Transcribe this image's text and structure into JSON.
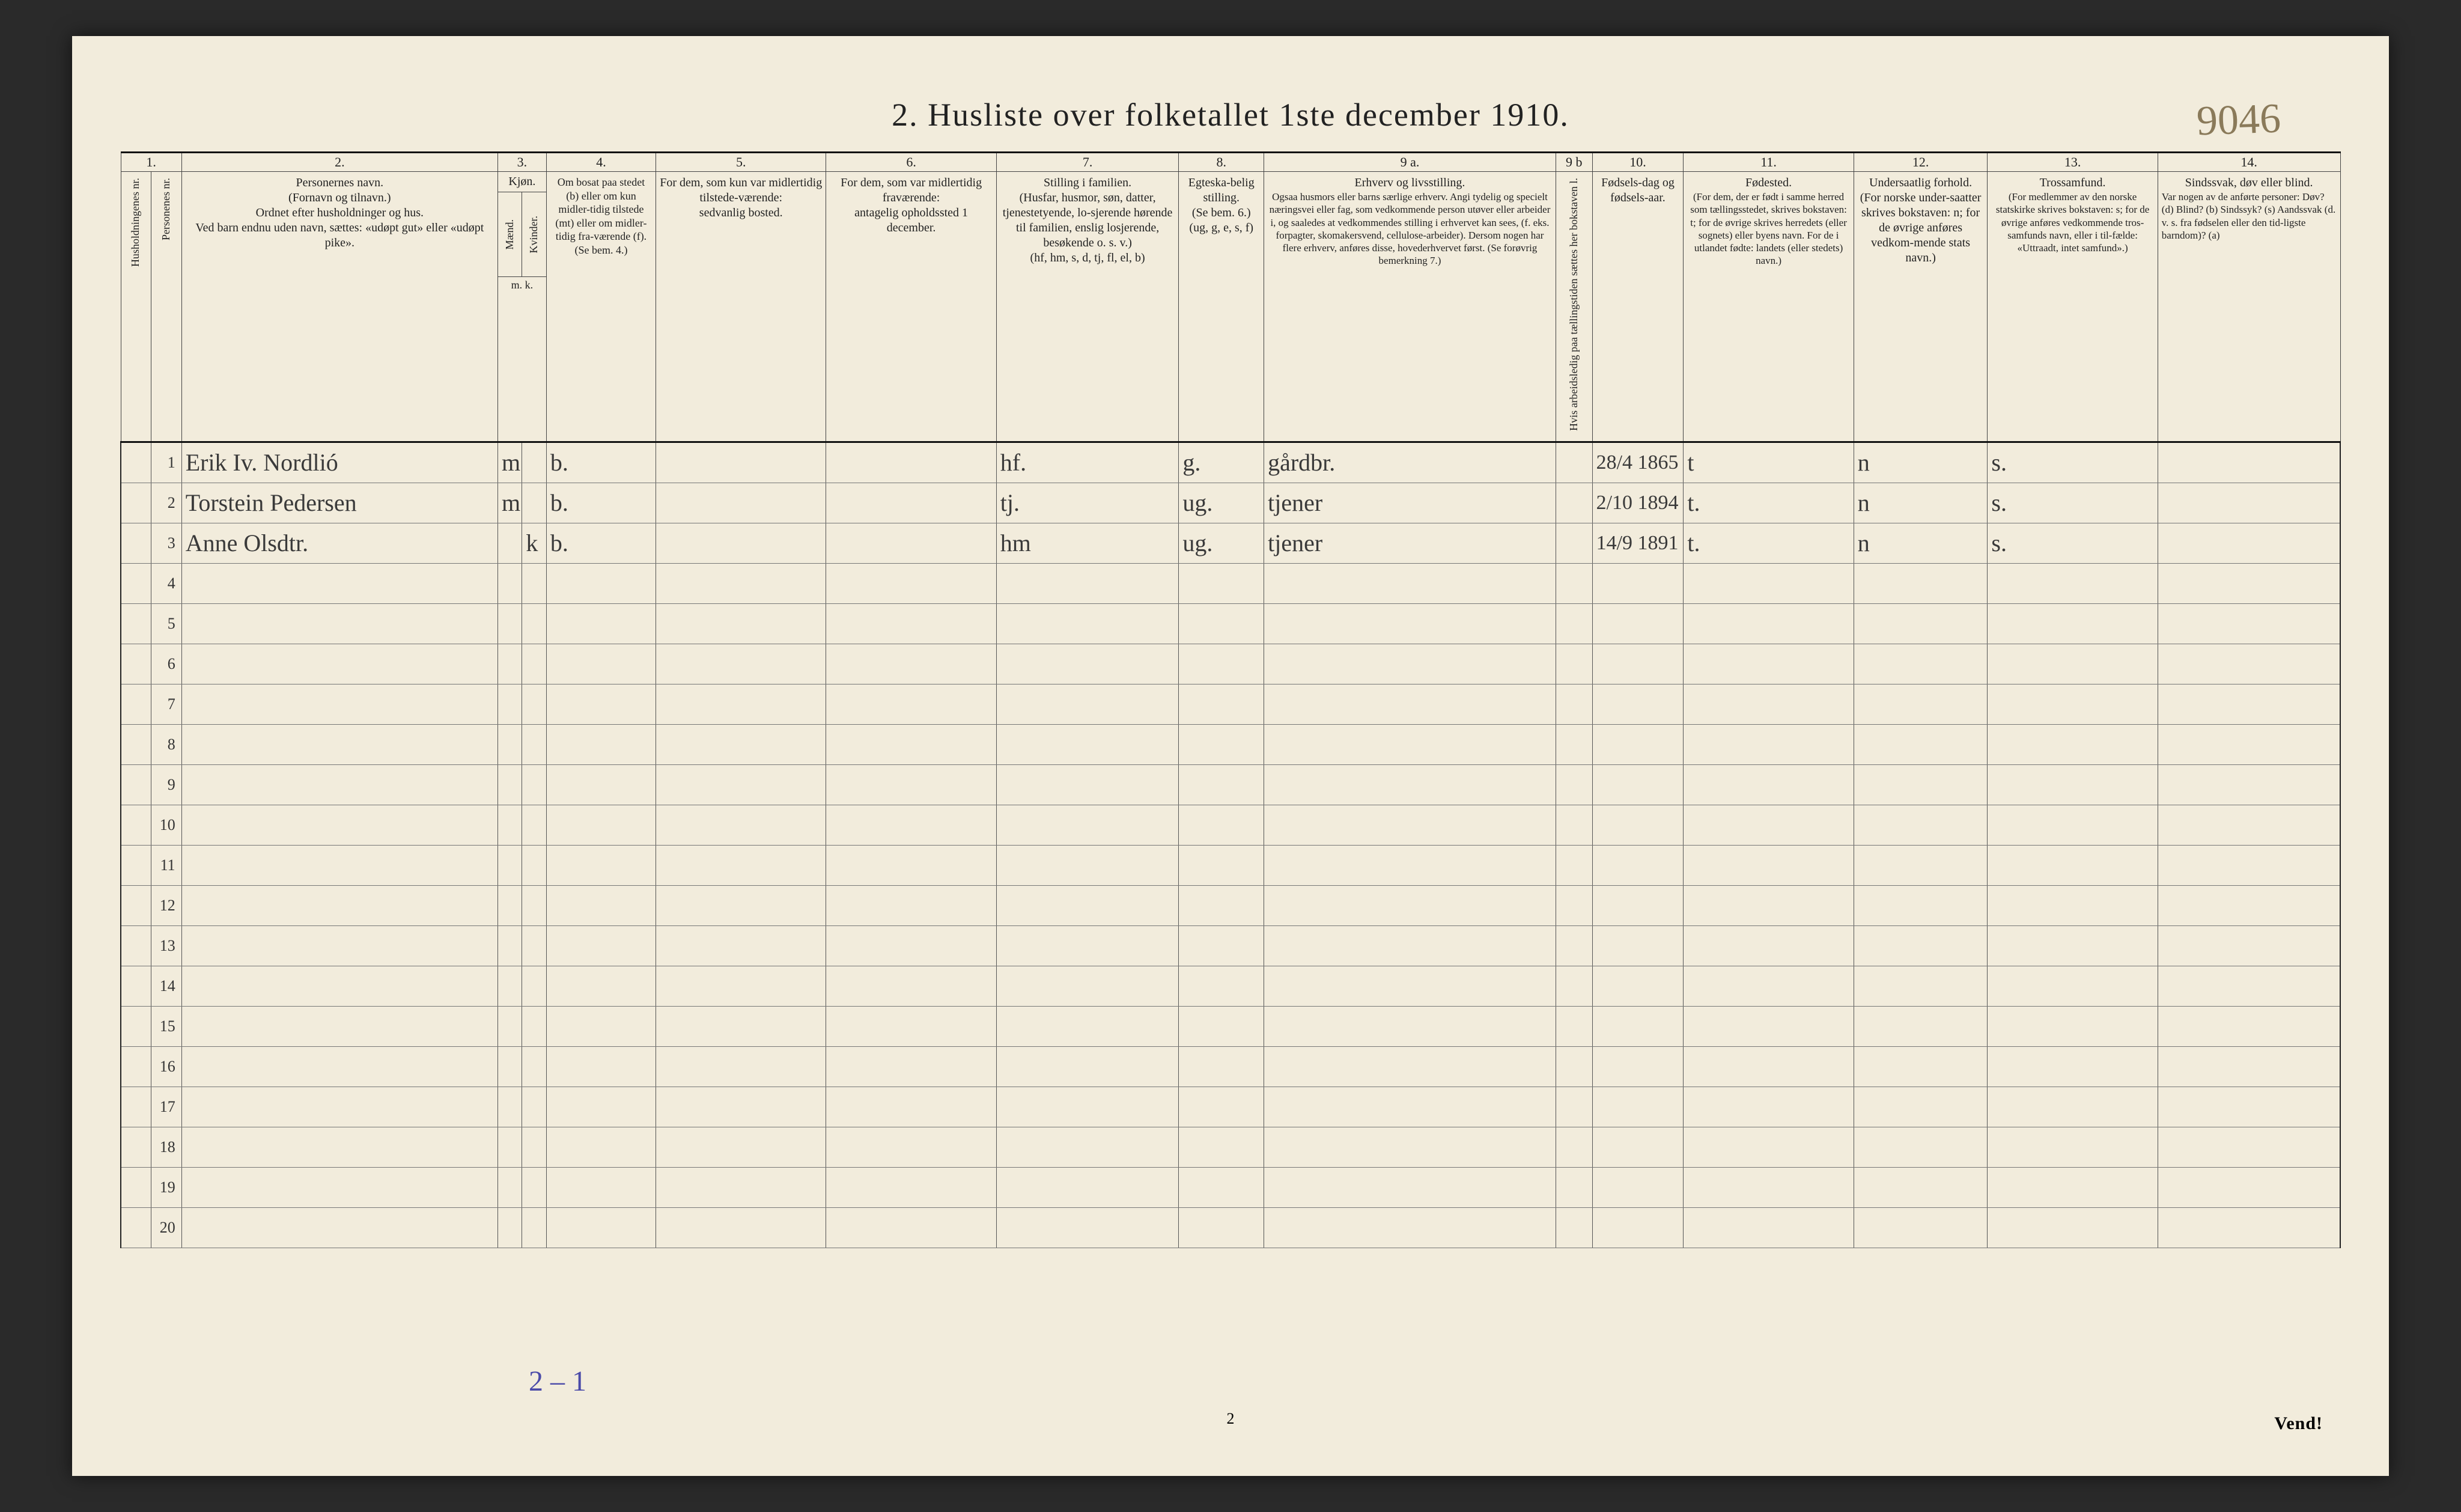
{
  "title": "2.  Husliste over folketallet 1ste december 1910.",
  "topright_note": "9046",
  "bottom_note": "2 – 1",
  "page_footer": "2",
  "vend": "Vend!",
  "col_nums": [
    "1.",
    "2.",
    "3.",
    "4.",
    "5.",
    "6.",
    "7.",
    "8.",
    "9 a.",
    "9 b",
    "10.",
    "11.",
    "12.",
    "13.",
    "14."
  ],
  "headers": {
    "c1a": "Husholdningenes nr.",
    "c1b": "Personenes nr.",
    "c2_t": "Personernes navn.",
    "c2_1": "(Fornavn og tilnavn.)",
    "c2_2": "Ordnet efter husholdninger og hus.",
    "c2_3": "Ved barn endnu uden navn, sættes: «udøpt gut» eller «udøpt pike».",
    "c3_t": "Kjøn.",
    "c3_m": "Mænd.",
    "c3_k": "Kvinder.",
    "c3_mk": "m.  k.",
    "c4_t": "Om bosat paa stedet (b) eller om kun midler-tidig tilstede (mt) eller om midler-tidig fra-værende (f). (Se bem. 4.)",
    "c5_t": "For dem, som kun var midlertidig tilstede-værende:",
    "c5_s": "sedvanlig bosted.",
    "c6_t": "For dem, som var midlertidig fraværende:",
    "c6_s": "antagelig opholdssted 1 december.",
    "c7_t": "Stilling i familien.",
    "c7_s": "(Husfar, husmor, søn, datter, tjenestetyende, lo-sjerende hørende til familien, enslig losjerende, besøkende o. s. v.)",
    "c7_s2": "(hf, hm, s, d, tj, fl, el, b)",
    "c8_t": "Egteska-belig stilling.",
    "c8_s": "(Se bem. 6.) (ug, g, e, s, f)",
    "c9a_t": "Erhverv og livsstilling.",
    "c9a_s": "Ogsaa husmors eller barns særlige erhverv. Angi tydelig og specielt næringsvei eller fag, som vedkommende person utøver eller arbeider i, og saaledes at vedkommendes stilling i erhvervet kan sees, (f. eks. forpagter, skomakersvend, cellulose-arbeider). Dersom nogen har flere erhverv, anføres disse, hovederhvervet først. (Se forøvrig bemerkning 7.)",
    "c9b_t": "Hvis arbeidsledig paa tællingstiden sættes her bokstaven l.",
    "c10_t": "Fødsels-dag og fødsels-aar.",
    "c11_t": "Fødested.",
    "c11_s": "(For dem, der er født i samme herred som tællingsstedet, skrives bokstaven: t; for de øvrige skrives herredets (eller sognets) eller byens navn. For de i utlandet fødte: landets (eller stedets) navn.)",
    "c12_t": "Undersaatlig forhold.",
    "c12_s": "(For norske under-saatter skrives bokstaven: n; for de øvrige anføres vedkom-mende stats navn.)",
    "c13_t": "Trossamfund.",
    "c13_s": "(For medlemmer av den norske statskirke skrives bokstaven: s; for de øvrige anføres vedkommende tros-samfunds navn, eller i til-fælde: «Uttraadt, intet samfund».)",
    "c14_t": "Sindssvak, døv eller blind.",
    "c14_s": "Var nogen av de anførte personer: Døv? (d)  Blind? (b)  Sindssyk? (s)  Aandssvak (d. v. s. fra fødselen eller den tid-ligste barndom)? (a)"
  },
  "rows": [
    {
      "num": "1",
      "name": "Erik Iv. Nordlió",
      "sex_m": "m",
      "sex_k": "",
      "res": "b.",
      "c5": "",
      "c6": "",
      "fam": "hf.",
      "mar": "g.",
      "occ": "gårdbr.",
      "c9b": "",
      "birth": "28/4 1865",
      "fplace": "t",
      "nat": "n",
      "rel": "s.",
      "c14": ""
    },
    {
      "num": "2",
      "name": "Torstein Pedersen",
      "sex_m": "m",
      "sex_k": "",
      "res": "b.",
      "c5": "",
      "c6": "",
      "fam": "tj.",
      "mar": "ug.",
      "occ": "tjener",
      "c9b": "",
      "birth": "2/10 1894",
      "fplace": "t.",
      "nat": "n",
      "rel": "s.",
      "c14": ""
    },
    {
      "num": "3",
      "name": "Anne Olsdtr.",
      "sex_m": "",
      "sex_k": "k",
      "res": "b.",
      "c5": "",
      "c6": "",
      "fam": "hm",
      "mar": "ug.",
      "occ": "tjener",
      "c9b": "",
      "birth": "14/9 1891",
      "fplace": "t.",
      "nat": "n",
      "rel": "s.",
      "c14": ""
    }
  ],
  "blank_rows": [
    "4",
    "5",
    "6",
    "7",
    "8",
    "9",
    "10",
    "11",
    "12",
    "13",
    "14",
    "15",
    "16",
    "17",
    "18",
    "19",
    "20"
  ]
}
